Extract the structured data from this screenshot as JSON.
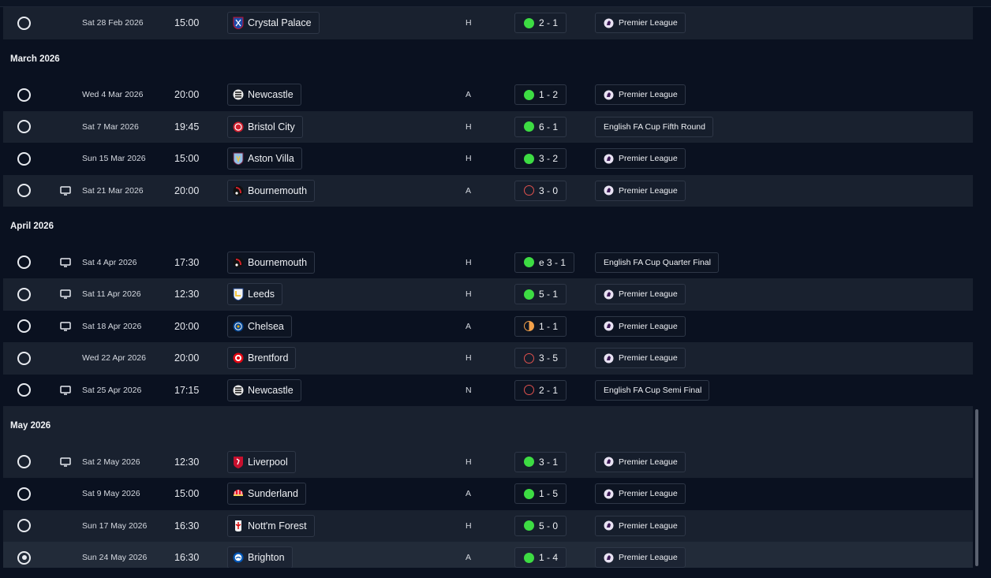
{
  "fixtures": {
    "row0": {
      "date": "Sat 28 Feb 2026",
      "time": "15:00",
      "team": "Crystal Palace",
      "venue": "H",
      "result": "2 - 1",
      "outcome": "win",
      "competition": "Premier League",
      "tv": false,
      "crest": "crystal-palace-crest-icon"
    },
    "month_march": "March 2026",
    "row1": {
      "date": "Wed 4 Mar 2026",
      "time": "20:00",
      "team": "Newcastle",
      "venue": "A",
      "result": "1 - 2",
      "outcome": "win",
      "competition": "Premier League",
      "tv": false,
      "crest": "newcastle-crest-icon"
    },
    "row2": {
      "date": "Sat 7 Mar 2026",
      "time": "19:45",
      "team": "Bristol City",
      "venue": "H",
      "result": "6 - 1",
      "outcome": "win",
      "competition": "English FA Cup Fifth Round",
      "tv": false,
      "crest": "bristol-city-crest-icon"
    },
    "row3": {
      "date": "Sun 15 Mar 2026",
      "time": "15:00",
      "team": "Aston Villa",
      "venue": "H",
      "result": "3 - 2",
      "outcome": "win",
      "competition": "Premier League",
      "tv": false,
      "crest": "aston-villa-crest-icon"
    },
    "row4": {
      "date": "Sat 21 Mar 2026",
      "time": "20:00",
      "team": "Bournemouth",
      "venue": "A",
      "result": "3 - 0",
      "outcome": "loss",
      "competition": "Premier League",
      "tv": true,
      "crest": "bournemouth-crest-icon"
    },
    "month_april": "April 2026",
    "row5": {
      "date": "Sat 4 Apr 2026",
      "time": "17:30",
      "team": "Bournemouth",
      "venue": "H",
      "result": "e 3 - 1",
      "outcome": "win",
      "competition": "English FA Cup Quarter Final",
      "tv": true,
      "crest": "bournemouth-crest-icon"
    },
    "row6": {
      "date": "Sat 11 Apr 2026",
      "time": "12:30",
      "team": "Leeds",
      "venue": "H",
      "result": "5 - 1",
      "outcome": "win",
      "competition": "Premier League",
      "tv": true,
      "crest": "leeds-crest-icon"
    },
    "row7": {
      "date": "Sat 18 Apr 2026",
      "time": "20:00",
      "team": "Chelsea",
      "venue": "A",
      "result": "1 - 1",
      "outcome": "draw",
      "competition": "Premier League",
      "tv": true,
      "crest": "chelsea-crest-icon"
    },
    "row8": {
      "date": "Wed 22 Apr 2026",
      "time": "20:00",
      "team": "Brentford",
      "venue": "H",
      "result": "3 - 5",
      "outcome": "loss",
      "competition": "Premier League",
      "tv": false,
      "crest": "brentford-crest-icon"
    },
    "row9": {
      "date": "Sat 25 Apr 2026",
      "time": "17:15",
      "team": "Newcastle",
      "venue": "N",
      "result": "2 - 1",
      "outcome": "loss",
      "competition": "English FA Cup Semi Final",
      "tv": true,
      "crest": "newcastle-crest-icon"
    },
    "month_may": "May 2026",
    "row10": {
      "date": "Sat 2 May 2026",
      "time": "12:30",
      "team": "Liverpool",
      "venue": "H",
      "result": "3 - 1",
      "outcome": "win",
      "competition": "Premier League",
      "tv": true,
      "crest": "liverpool-crest-icon"
    },
    "row11": {
      "date": "Sat 9 May 2026",
      "time": "15:00",
      "team": "Sunderland",
      "venue": "A",
      "result": "1 - 5",
      "outcome": "win",
      "competition": "Premier League",
      "tv": false,
      "crest": "sunderland-crest-icon"
    },
    "row12": {
      "date": "Sun 17 May 2026",
      "time": "16:30",
      "team": "Nott'm Forest",
      "venue": "H",
      "result": "5 - 0",
      "outcome": "win",
      "competition": "Premier League",
      "tv": false,
      "crest": "nottm-forest-crest-icon"
    },
    "row13": {
      "date": "Sun 24 May 2026",
      "time": "16:30",
      "team": "Brighton",
      "venue": "A",
      "result": "1 - 4",
      "outcome": "win",
      "competition": "Premier League",
      "tv": false,
      "crest": "brighton-crest-icon",
      "selected": true
    }
  },
  "colors": {
    "win": "#3ddc43",
    "loss": "#e0514d",
    "draw": "#f2a04a",
    "background": "#0a1120",
    "row_alt": "#19212f"
  }
}
